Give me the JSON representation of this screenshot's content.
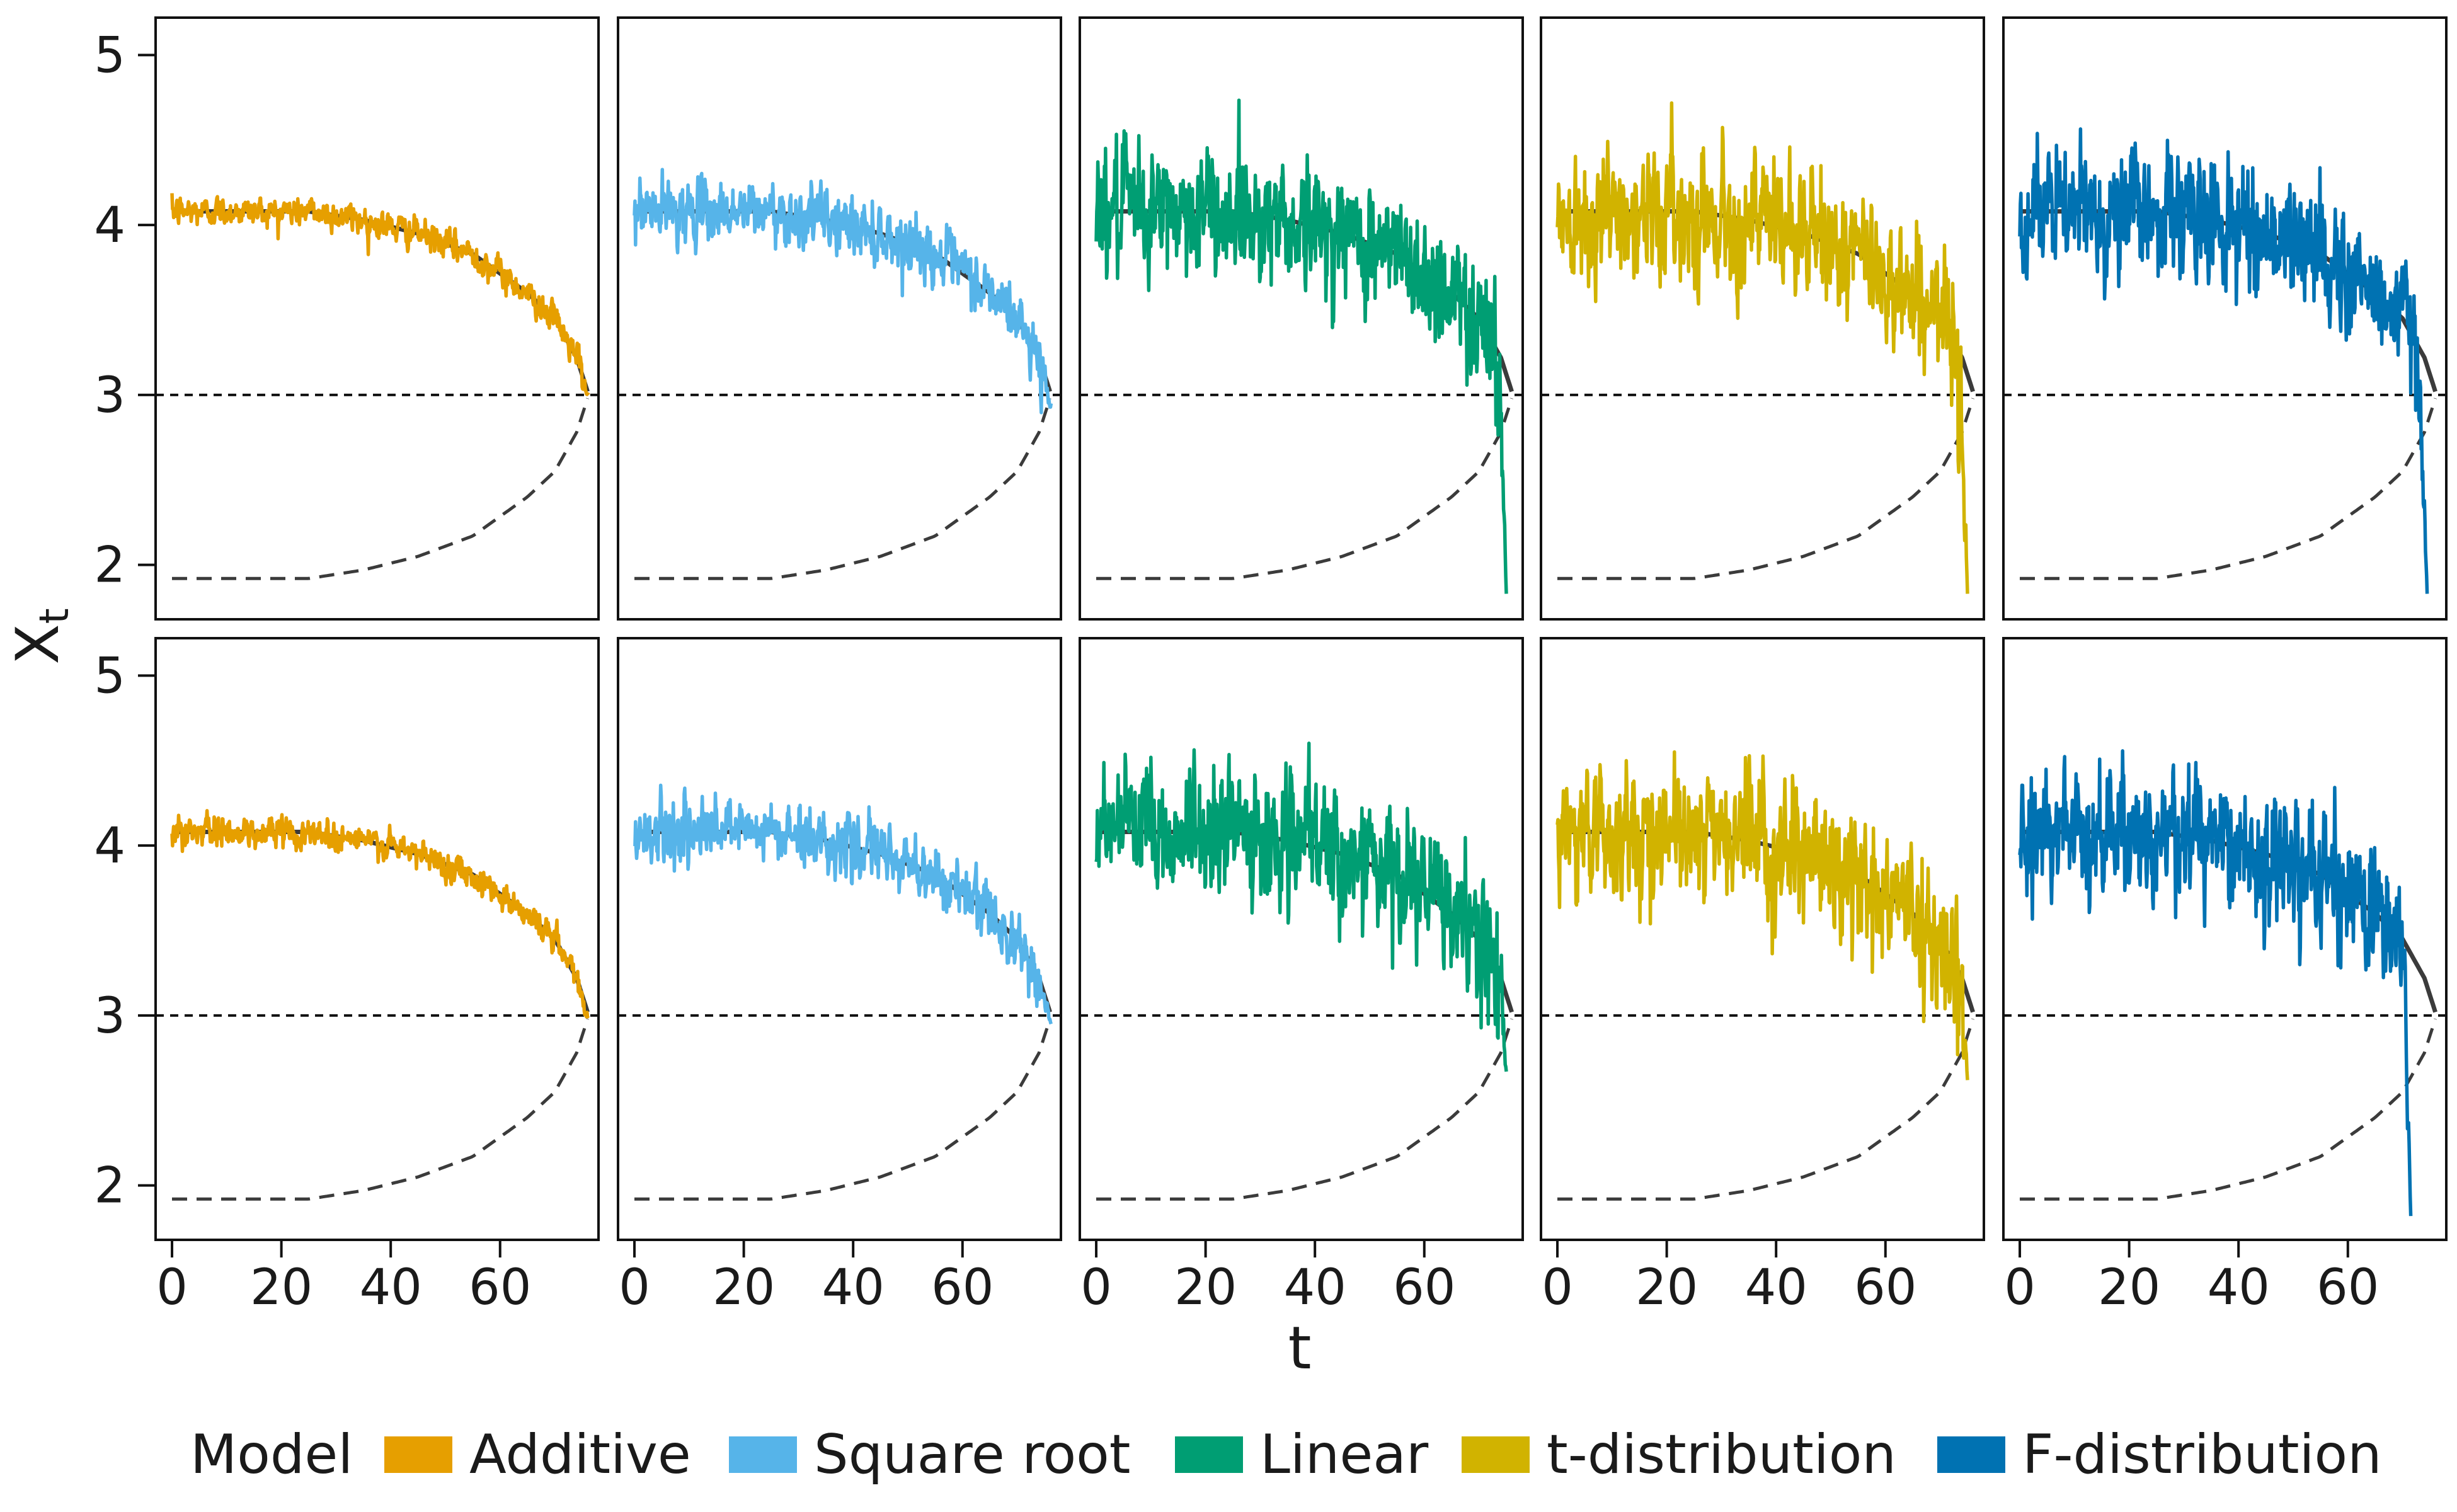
{
  "chart_data": {
    "type": "line",
    "ylabel": "X",
    "ylabel_subscript": "t",
    "xlabel": "t",
    "x_ticks": [
      0,
      20,
      40,
      60
    ],
    "y_ticks": [
      2,
      3,
      4,
      5
    ],
    "xlim": [
      -3,
      78
    ],
    "ylim": [
      1.68,
      5.22
    ],
    "rows": 2,
    "columns": [
      "Additive",
      "Square root",
      "Linear",
      "t-distribution",
      "F-distribution"
    ],
    "reference_lines": {
      "critical_level": 3,
      "stable_branch": {
        "label": "stable equilibrium (solid)",
        "t": [
          0,
          25,
          35,
          45,
          55,
          65,
          70,
          74,
          76.2
        ],
        "values": [
          4.08,
          4.08,
          4.03,
          3.95,
          3.83,
          3.6,
          3.45,
          3.22,
          3.0
        ]
      },
      "unstable_branch": {
        "label": "unstable equilibrium (dashed)",
        "t": [
          0,
          25,
          35,
          45,
          55,
          65,
          70,
          74,
          76.2
        ],
        "values": [
          1.92,
          1.92,
          1.97,
          2.05,
          2.17,
          2.4,
          2.55,
          2.78,
          3.0
        ]
      }
    },
    "series": [
      {
        "name": "Additive",
        "color": "#E69F00",
        "noise_amplitude": [
          0.07,
          0.07
        ],
        "end_t": [
          76.2,
          76.2
        ],
        "end_value": [
          3.0,
          3.0
        ]
      },
      {
        "name": "Square root",
        "color": "#56B4E9",
        "noise_amplitude": [
          0.14,
          0.14
        ],
        "end_t": [
          76.2,
          76.2
        ],
        "end_value": [
          2.95,
          2.95
        ]
      },
      {
        "name": "Linear",
        "color": "#009E73",
        "noise_amplitude": [
          0.3,
          0.3
        ],
        "end_t": [
          75,
          75
        ],
        "end_value": [
          1.83,
          2.67
        ]
      },
      {
        "name": "t-distribution",
        "color": "#D1B300",
        "noise_amplitude": [
          0.3,
          0.3
        ],
        "end_t": [
          75,
          75
        ],
        "end_value": [
          1.83,
          2.62
        ]
      },
      {
        "name": "F-distribution",
        "color": "#0072B2",
        "noise_amplitude": [
          0.3,
          0.3
        ],
        "end_t": [
          74.5,
          71.5
        ],
        "end_value": [
          1.83,
          1.82
        ]
      }
    ],
    "legend": {
      "title": "Model",
      "position": "bottom",
      "entries": [
        "Additive",
        "Square root",
        "Linear",
        "t-distribution",
        "F-distribution"
      ]
    }
  }
}
